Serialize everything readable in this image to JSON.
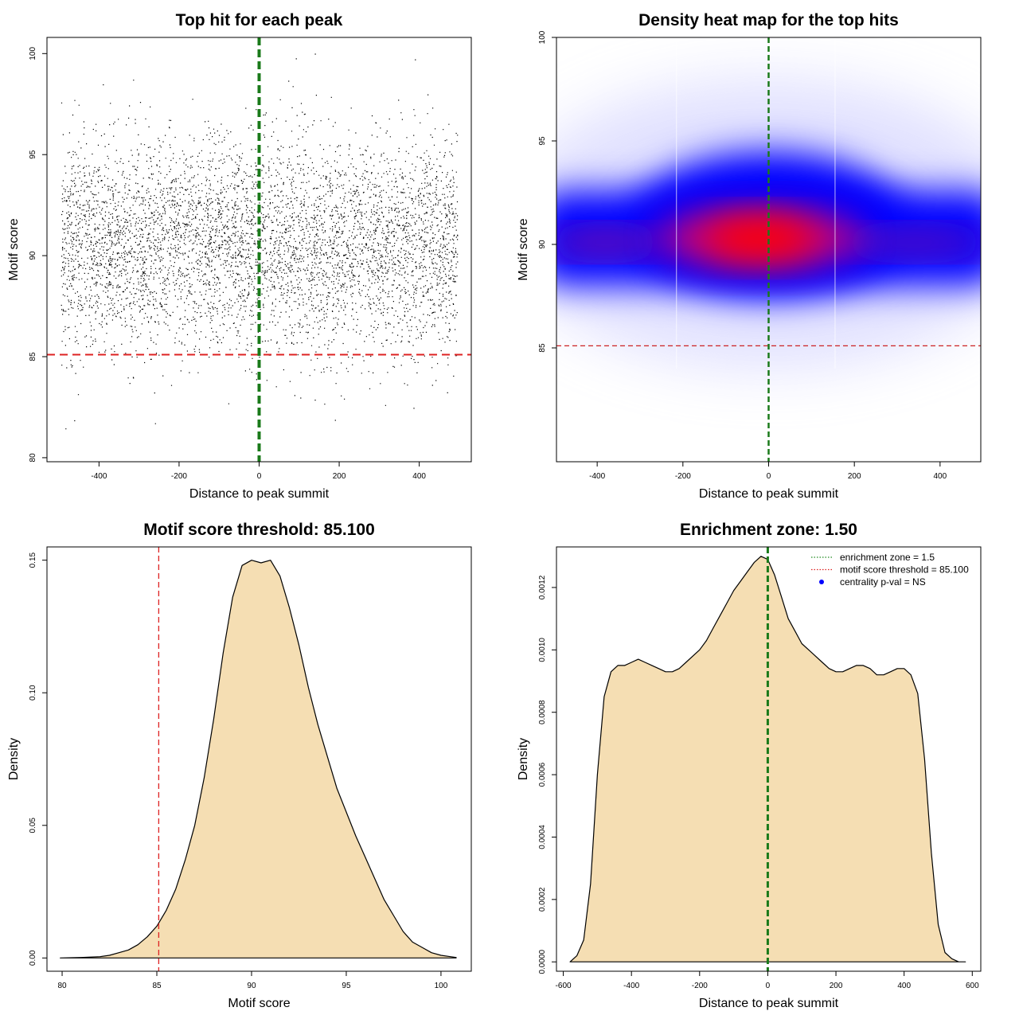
{
  "chart_data": [
    {
      "id": "scatter",
      "type": "scatter",
      "title": "Top hit for each peak",
      "xlabel": "Distance to peak summit",
      "ylabel": "Motif score",
      "xlim": [
        -530,
        530
      ],
      "ylim": [
        79.8,
        100.8
      ],
      "xticks": [
        -400,
        -200,
        0,
        200,
        400
      ],
      "yticks": [
        80,
        85,
        90,
        95,
        100
      ],
      "x_range_of_points": [
        -495,
        495
      ],
      "y_center": 90.5,
      "y_spread": 2.6,
      "approx_point_count": 9000,
      "threshold_line": {
        "y": 85.1,
        "color": "#dd2222",
        "style": "dashed"
      },
      "summit_line": {
        "x": 0,
        "color": "#1a7a1a",
        "style": "dashed"
      },
      "point_color": "#000000"
    },
    {
      "id": "heatmap",
      "type": "heatmap",
      "title": "Density heat map for the top hits",
      "xlabel": "Distance to peak summit",
      "ylabel": "Motif score",
      "xlim": [
        -495,
        495
      ],
      "ylim": [
        79.5,
        100
      ],
      "xticks": [
        -400,
        -200,
        0,
        200,
        400
      ],
      "yticks": [
        85,
        90,
        95,
        100
      ],
      "peak": {
        "x": -20,
        "y": 90.3
      },
      "threshold_line": {
        "y": 85.1,
        "color": "#cc2222",
        "style": "dashed"
      },
      "summit_line": {
        "x": 0,
        "color": "#1a7a1a",
        "style": "dashed"
      },
      "colors": {
        "low": "#ffffff",
        "mid": "#0000ff",
        "high": "#ff0000"
      }
    },
    {
      "id": "score-density",
      "type": "area",
      "title": "Motif score threshold: 85.100",
      "xlabel": "Motif score",
      "ylabel": "Density",
      "xlim": [
        79.2,
        101.6
      ],
      "ylim": [
        -0.005,
        0.155
      ],
      "xticks": [
        80,
        85,
        90,
        95,
        100
      ],
      "yticks": [
        0.0,
        0.05,
        0.1,
        0.15
      ],
      "ytick_labels": [
        "0.00",
        "0.05",
        "0.10",
        "0.15"
      ],
      "x": [
        79.9,
        81,
        82,
        82.5,
        83,
        83.5,
        84,
        84.5,
        85,
        85.5,
        86,
        86.5,
        87,
        87.5,
        88,
        88.5,
        89,
        89.5,
        90,
        90.5,
        91,
        91.5,
        92,
        92.5,
        93,
        93.5,
        94,
        94.5,
        95,
        95.5,
        96,
        96.5,
        97,
        97.5,
        98,
        98.5,
        99,
        99.5,
        100,
        100.5,
        100.8
      ],
      "y": [
        0.0,
        0.0002,
        0.0005,
        0.001,
        0.002,
        0.003,
        0.005,
        0.008,
        0.012,
        0.018,
        0.026,
        0.037,
        0.05,
        0.068,
        0.09,
        0.115,
        0.136,
        0.148,
        0.15,
        0.149,
        0.15,
        0.144,
        0.132,
        0.118,
        0.102,
        0.088,
        0.076,
        0.064,
        0.055,
        0.046,
        0.038,
        0.03,
        0.022,
        0.016,
        0.01,
        0.006,
        0.004,
        0.002,
        0.001,
        0.0005,
        0.0002
      ],
      "fill": "#f5deb3",
      "threshold_line": {
        "x": 85.1,
        "color": "#dd2222",
        "style": "dashed"
      }
    },
    {
      "id": "distance-density",
      "type": "area",
      "title": "Enrichment zone: 1.50",
      "xlabel": "Distance to peak summit",
      "ylabel": "Density",
      "xlim": [
        -620,
        625
      ],
      "ylim": [
        -3e-05,
        0.00133
      ],
      "xticks": [
        -600,
        -400,
        -200,
        0,
        200,
        400,
        600
      ],
      "yticks": [
        0,
        0.0002,
        0.0004,
        0.0006,
        0.0008,
        0.001,
        0.0012
      ],
      "ytick_labels": [
        "0.0000",
        "0.0002",
        "0.0004",
        "0.0006",
        "0.0008",
        "0.0010",
        "0.0012"
      ],
      "x": [
        -580,
        -560,
        -540,
        -520,
        -500,
        -480,
        -460,
        -440,
        -420,
        -400,
        -380,
        -360,
        -340,
        -320,
        -300,
        -280,
        -260,
        -240,
        -220,
        -200,
        -180,
        -160,
        -140,
        -120,
        -100,
        -80,
        -60,
        -40,
        -20,
        0,
        20,
        40,
        60,
        80,
        100,
        120,
        140,
        160,
        180,
        200,
        220,
        240,
        260,
        280,
        300,
        320,
        340,
        360,
        380,
        400,
        420,
        440,
        460,
        480,
        500,
        520,
        540,
        560,
        580
      ],
      "y": [
        0.0,
        2e-05,
        7e-05,
        0.00025,
        0.0006,
        0.00085,
        0.00093,
        0.00095,
        0.00095,
        0.00096,
        0.00097,
        0.00096,
        0.00095,
        0.00094,
        0.00093,
        0.00093,
        0.00094,
        0.00096,
        0.00098,
        0.001,
        0.00103,
        0.00107,
        0.00111,
        0.00115,
        0.00119,
        0.00122,
        0.00125,
        0.00128,
        0.0013,
        0.00129,
        0.00124,
        0.00117,
        0.0011,
        0.00106,
        0.00102,
        0.001,
        0.00098,
        0.00096,
        0.00094,
        0.00093,
        0.00093,
        0.00094,
        0.00095,
        0.00095,
        0.00094,
        0.00092,
        0.00092,
        0.00093,
        0.00094,
        0.00094,
        0.00092,
        0.00086,
        0.00065,
        0.00035,
        0.00012,
        3e-05,
        1e-05,
        0.0,
        0.0
      ],
      "fill": "#f5deb3",
      "summit_line": {
        "x": 0,
        "color": "#1a7a1a",
        "style": "dashed"
      },
      "legend_position": "top-right",
      "legend": [
        {
          "label": "enrichment zone = 1.5",
          "color": "#228b22",
          "kind": "dotted-line"
        },
        {
          "label": "motif score threshold = 85.100",
          "color": "#dd2222",
          "kind": "dotted-line"
        },
        {
          "label": "centrality p-val = NS",
          "color": "#0000ff",
          "kind": "dot"
        }
      ]
    }
  ]
}
